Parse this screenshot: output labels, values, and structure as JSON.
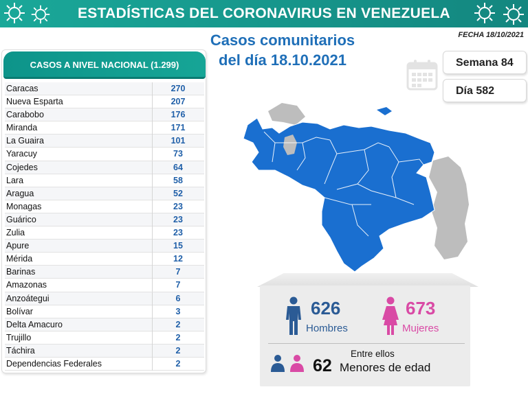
{
  "banner": {
    "title": "ESTADÍSTICAS DEL CORONAVIRUS EN VENEZUELA"
  },
  "fecha": "FECHA 18/10/2021",
  "headline": {
    "line1": "Casos comunitarios",
    "line2": "del día 18.10.2021"
  },
  "table": {
    "title": "CASOS A NIVEL NACIONAL (1.299)",
    "rows": [
      {
        "state": "Caracas",
        "cases": "270"
      },
      {
        "state": "Nueva Esparta",
        "cases": "207"
      },
      {
        "state": "Carabobo",
        "cases": "176"
      },
      {
        "state": "Miranda",
        "cases": "171"
      },
      {
        "state": "La Guaira",
        "cases": "101"
      },
      {
        "state": "Yaracuy",
        "cases": "73"
      },
      {
        "state": "Cojedes",
        "cases": "64"
      },
      {
        "state": "Lara",
        "cases": "58"
      },
      {
        "state": "Aragua",
        "cases": "52"
      },
      {
        "state": "Monagas",
        "cases": "23"
      },
      {
        "state": "Guárico",
        "cases": "23"
      },
      {
        "state": "Zulia",
        "cases": "23"
      },
      {
        "state": "Apure",
        "cases": "15"
      },
      {
        "state": "Mérida",
        "cases": "12"
      },
      {
        "state": "Barinas",
        "cases": "7"
      },
      {
        "state": "Amazonas",
        "cases": "7"
      },
      {
        "state": "Anzoátegui",
        "cases": "6"
      },
      {
        "state": "Bolívar",
        "cases": "3"
      },
      {
        "state": "Delta Amacuro",
        "cases": "2"
      },
      {
        "state": "Trujillo",
        "cases": "2"
      },
      {
        "state": "Táchira",
        "cases": "2"
      },
      {
        "state": "Dependencias Federales",
        "cases": "2"
      }
    ]
  },
  "week": "Semana 84",
  "day": "Día 582",
  "stats": {
    "men": {
      "value": "626",
      "label": "Hombres"
    },
    "women": {
      "value": "673",
      "label": "Mujeres"
    },
    "entre": "Entre ellos",
    "minors": {
      "value": "62",
      "label": "Menores de edad"
    }
  },
  "colors": {
    "teal": "#15a093",
    "blue": "#1f6fb8",
    "map_blue": "#1a6fd0",
    "men": "#2b5b95",
    "women": "#d94aa5"
  },
  "icons": [
    "virus-icon",
    "calendar-icon",
    "man-icon",
    "woman-icon",
    "family-icon",
    "venezuela-map"
  ]
}
